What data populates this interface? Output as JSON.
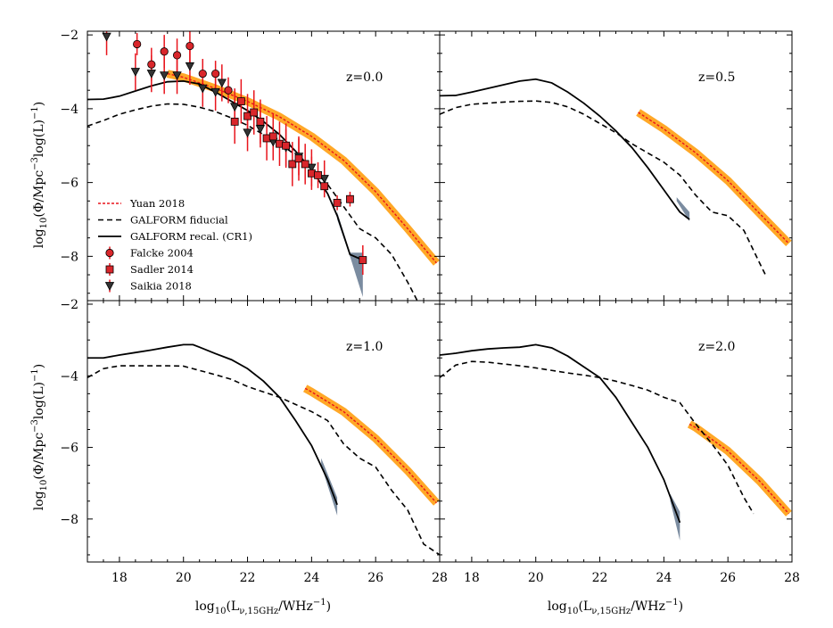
{
  "chart_data": {
    "type": "line",
    "xlabel": "log10(L_ν,15GHz/WHz^-1)",
    "ylabel": "log10(Φ/Mpc^-3 log(L)^-1)",
    "xlim": [
      17,
      28
    ],
    "ylim": [
      -9.2,
      -1.9
    ],
    "xticks": [
      18,
      20,
      22,
      24,
      26,
      28
    ],
    "yticks": [
      -2,
      -4,
      -6,
      -8
    ],
    "colors": {
      "yuan_line": "#e8141c",
      "yuan_band": "#ff9f10",
      "galform": "#000000",
      "recal_band": "#64788f",
      "obs_marker": "#d9262b",
      "errorbar": "#e8141c"
    },
    "legend": {
      "position": "lower-left of top-left panel",
      "entries": [
        "Yuan 2018",
        "GALFORM fiducial",
        "GALFORM recal. (CR1)",
        "Falcke 2004",
        "Sadler 2014",
        "Saikia 2018"
      ]
    },
    "panels": [
      {
        "z_label": "z=0.0",
        "recal": {
          "x": [
            17,
            17.5,
            18,
            18.5,
            19,
            19.5,
            20,
            20.5,
            21,
            21.5,
            22,
            22.5,
            23,
            23.5,
            24,
            24.5,
            24.8,
            25.2,
            25.6
          ],
          "y": [
            -3.75,
            -3.74,
            -3.66,
            -3.52,
            -3.38,
            -3.27,
            -3.25,
            -3.33,
            -3.55,
            -3.8,
            -4.05,
            -4.35,
            -4.7,
            -5.15,
            -5.65,
            -6.3,
            -6.9,
            -7.95,
            -8.1
          ]
        },
        "recal_band": {
          "x": [
            24.8,
            25.2,
            25.6
          ],
          "lo": [
            -7.0,
            -8.0,
            -9.1
          ],
          "hi": [
            -6.8,
            -7.9,
            -7.9
          ]
        },
        "fiducial": {
          "x": [
            17,
            17.5,
            18,
            18.5,
            19,
            19.5,
            20,
            20.5,
            21,
            21.5,
            22,
            22.5,
            23,
            23.5,
            24,
            24.5,
            25,
            25.5,
            26,
            26.5,
            27,
            27.3
          ],
          "y": [
            -4.47,
            -4.32,
            -4.15,
            -4.03,
            -3.93,
            -3.87,
            -3.88,
            -3.96,
            -4.08,
            -4.25,
            -4.45,
            -4.7,
            -4.95,
            -5.25,
            -5.6,
            -6.05,
            -6.65,
            -7.25,
            -7.5,
            -7.95,
            -8.7,
            -9.2
          ]
        },
        "yuan": {
          "x": [
            19.5,
            20,
            21,
            22,
            23,
            24,
            25,
            26,
            27,
            27.9
          ],
          "y": [
            -3.05,
            -3.15,
            -3.45,
            -3.8,
            -4.22,
            -4.75,
            -5.4,
            -6.25,
            -7.25,
            -8.18
          ]
        },
        "falcke": {
          "x": [
            18.55,
            19,
            19.4,
            19.8,
            20.2,
            20.6,
            21,
            21.4
          ],
          "y": [
            -2.25,
            -2.8,
            -2.45,
            -2.55,
            -2.3,
            -3.05,
            -3.05,
            -3.5
          ],
          "err": [
            0.3,
            0.45,
            0.45,
            0.45,
            0.5,
            0.4,
            0.35,
            0.35
          ]
        },
        "sadler": {
          "x": [
            21.6,
            21.8,
            22,
            22.2,
            22.4,
            22.6,
            22.8,
            23,
            23.2,
            23.4,
            23.6,
            23.8,
            24,
            24.2,
            24.4,
            24.8,
            25.2,
            25.6
          ],
          "y": [
            -4.35,
            -3.8,
            -4.2,
            -4.1,
            -4.35,
            -4.8,
            -4.75,
            -4.95,
            -5,
            -5.5,
            -5.35,
            -5.5,
            -5.75,
            -5.8,
            -6.1,
            -6.55,
            -6.45,
            -8.1
          ],
          "err": [
            0.6,
            0.6,
            0.6,
            0.6,
            0.6,
            0.6,
            0.6,
            0.6,
            0.6,
            0.6,
            0.6,
            0.55,
            0.45,
            0.35,
            0.3,
            0.2,
            0.2,
            0.4
          ]
        },
        "saikia": {
          "x": [
            17.6,
            18.5,
            19,
            19.4,
            19.8,
            20.2,
            20.6,
            21,
            21.2,
            21.6,
            22,
            22.4,
            22.8,
            23.2,
            23.6,
            24,
            24.4
          ],
          "y": [
            -2.05,
            -3,
            -3.05,
            -3.1,
            -3.1,
            -2.85,
            -3.45,
            -3.55,
            -3.3,
            -3.95,
            -4.65,
            -4.55,
            -4.9,
            -5.05,
            -5.3,
            -5.6,
            -5.9
          ],
          "err": [
            0.5,
            0.5,
            0.5,
            0.5,
            0.5,
            0.5,
            0.5,
            0.5,
            0.5,
            0.5,
            0.5,
            0.5,
            0.5,
            0.5,
            0.5,
            0.5,
            0.5
          ]
        }
      },
      {
        "z_label": "z=0.5",
        "recal": {
          "x": [
            17,
            17.5,
            18,
            18.5,
            19,
            19.5,
            20,
            20.5,
            21,
            21.5,
            22,
            22.5,
            23,
            23.5,
            24,
            24.5,
            24.8
          ],
          "y": [
            -3.65,
            -3.64,
            -3.55,
            -3.45,
            -3.35,
            -3.25,
            -3.2,
            -3.3,
            -3.55,
            -3.85,
            -4.2,
            -4.6,
            -5.05,
            -5.6,
            -6.2,
            -6.8,
            -7.0
          ]
        },
        "recal_band": {
          "x": [
            24.4,
            24.8
          ],
          "lo": [
            -6.5,
            -7.05
          ],
          "hi": [
            -6.4,
            -6.8
          ]
        },
        "fiducial": {
          "x": [
            17,
            17.5,
            18,
            18.5,
            19,
            19.5,
            20,
            20.5,
            21,
            21.5,
            22,
            22.5,
            23,
            23.5,
            24,
            24.5,
            25,
            25.5,
            26,
            26.5,
            27,
            27.2
          ],
          "y": [
            -4.15,
            -3.97,
            -3.88,
            -3.85,
            -3.82,
            -3.8,
            -3.79,
            -3.83,
            -3.95,
            -4.15,
            -4.4,
            -4.65,
            -4.95,
            -5.2,
            -5.45,
            -5.8,
            -6.35,
            -6.8,
            -6.9,
            -7.3,
            -8.2,
            -8.55
          ]
        },
        "yuan": {
          "x": [
            23.2,
            24,
            25,
            26,
            27,
            27.9
          ],
          "y": [
            -4.1,
            -4.55,
            -5.2,
            -5.95,
            -6.85,
            -7.65
          ]
        }
      },
      {
        "z_label": "z=1.0",
        "recal": {
          "x": [
            17,
            17.5,
            18,
            18.5,
            19,
            19.5,
            20,
            20.3,
            20.5,
            21,
            21.5,
            22,
            22.5,
            23,
            23.5,
            24,
            24.5,
            24.8
          ],
          "y": [
            -3.5,
            -3.5,
            -3.42,
            -3.35,
            -3.28,
            -3.2,
            -3.13,
            -3.13,
            -3.2,
            -3.38,
            -3.55,
            -3.8,
            -4.15,
            -4.6,
            -5.25,
            -5.95,
            -6.9,
            -7.6
          ]
        },
        "recal_band": {
          "x": [
            24.3,
            24.8
          ],
          "lo": [
            -6.5,
            -7.9
          ],
          "hi": [
            -6.3,
            -7.4
          ]
        },
        "fiducial": {
          "x": [
            17,
            17.5,
            18,
            18.5,
            19,
            19.5,
            20,
            20.5,
            21,
            21.5,
            22,
            22.5,
            23,
            23.5,
            24,
            24.5,
            25,
            25.5,
            26,
            26.5,
            27,
            27.5,
            28
          ],
          "y": [
            -4.05,
            -3.8,
            -3.72,
            -3.72,
            -3.72,
            -3.72,
            -3.73,
            -3.85,
            -3.97,
            -4.1,
            -4.3,
            -4.45,
            -4.6,
            -4.8,
            -5.0,
            -5.25,
            -5.9,
            -6.3,
            -6.55,
            -7.2,
            -7.75,
            -8.7,
            -9.0
          ]
        },
        "yuan": {
          "x": [
            23.8,
            24,
            25,
            26,
            27,
            27.9
          ],
          "y": [
            -4.35,
            -4.45,
            -5.0,
            -5.75,
            -6.65,
            -7.55
          ]
        }
      },
      {
        "z_label": "z=2.0",
        "recal": {
          "x": [
            17,
            17.5,
            18,
            18.5,
            19,
            19.5,
            20,
            20.5,
            21,
            21.5,
            22,
            22.5,
            23,
            23.5,
            24,
            24.5
          ],
          "y": [
            -3.42,
            -3.37,
            -3.3,
            -3.25,
            -3.22,
            -3.2,
            -3.13,
            -3.22,
            -3.45,
            -3.75,
            -4.05,
            -4.6,
            -5.3,
            -6.0,
            -6.9,
            -8.1
          ]
        },
        "recal_band": {
          "x": [
            24.2,
            24.5
          ],
          "lo": [
            -7.5,
            -8.6
          ],
          "hi": [
            -7.3,
            -7.8
          ]
        },
        "fiducial": {
          "x": [
            17,
            17.5,
            18,
            18.5,
            19,
            19.5,
            20,
            20.5,
            21,
            21.5,
            22,
            22.5,
            23,
            23.5,
            24,
            24.5,
            25,
            25.5,
            26,
            26.5,
            26.8
          ],
          "y": [
            -4.05,
            -3.7,
            -3.6,
            -3.62,
            -3.67,
            -3.72,
            -3.78,
            -3.85,
            -3.92,
            -3.98,
            -4.05,
            -4.15,
            -4.27,
            -4.4,
            -4.6,
            -4.75,
            -5.35,
            -5.9,
            -6.5,
            -7.4,
            -7.85
          ]
        },
        "yuan": {
          "x": [
            24.8,
            25,
            26,
            27,
            27.9
          ],
          "y": [
            -5.35,
            -5.45,
            -6.1,
            -6.95,
            -7.85
          ]
        }
      }
    ]
  }
}
